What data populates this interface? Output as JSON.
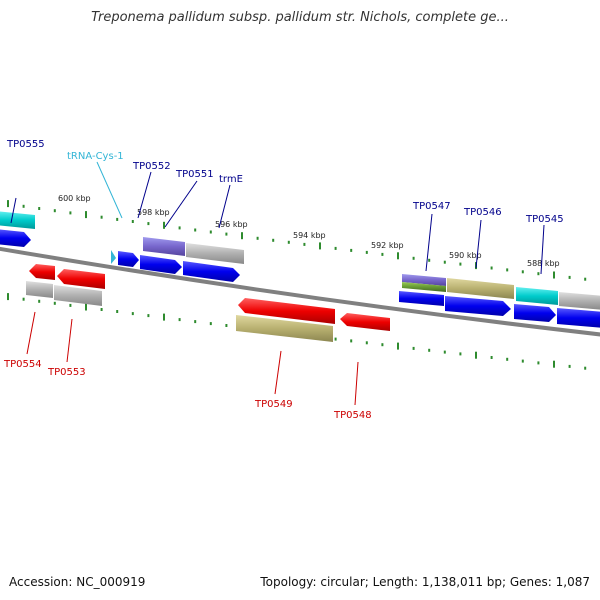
{
  "header": {
    "title": "Treponema pallidum subsp. pallidum str. Nichols, complete ge..."
  },
  "footer": {
    "accession": "Accession: NC_000919",
    "summary": "Topology: circular; Length: 1,138,011 bp; Genes: 1,087"
  },
  "colors": {
    "forward_label": "#00008b",
    "reverse_label": "#cc0000",
    "trna_label": "#33b5d6",
    "backbone": "#808080",
    "tick": "#2e8b2e",
    "cds_forward": "#0000ee",
    "cds_reverse": "#ee0000",
    "gene_gray": "#aaaaaa",
    "gene_cyan": "#00cccc",
    "gene_purple": "#7766cc",
    "gene_khaki": "#b8b070",
    "gene_green": "#669933"
  },
  "scale": {
    "unit": "kbp",
    "labels": [
      "600 kbp",
      "598 kbp",
      "596 kbp",
      "594 kbp",
      "592 kbp",
      "590 kbp",
      "588 kbp"
    ]
  },
  "genes": {
    "forward_labels": [
      "TP0555",
      "TP0552",
      "TP0551",
      "trmE",
      "TP0547",
      "TP0546",
      "TP0545"
    ],
    "trna_label": "tRNA-Cys-1",
    "reverse_labels": [
      "TP0554",
      "TP0553",
      "TP0549",
      "TP0548"
    ]
  }
}
